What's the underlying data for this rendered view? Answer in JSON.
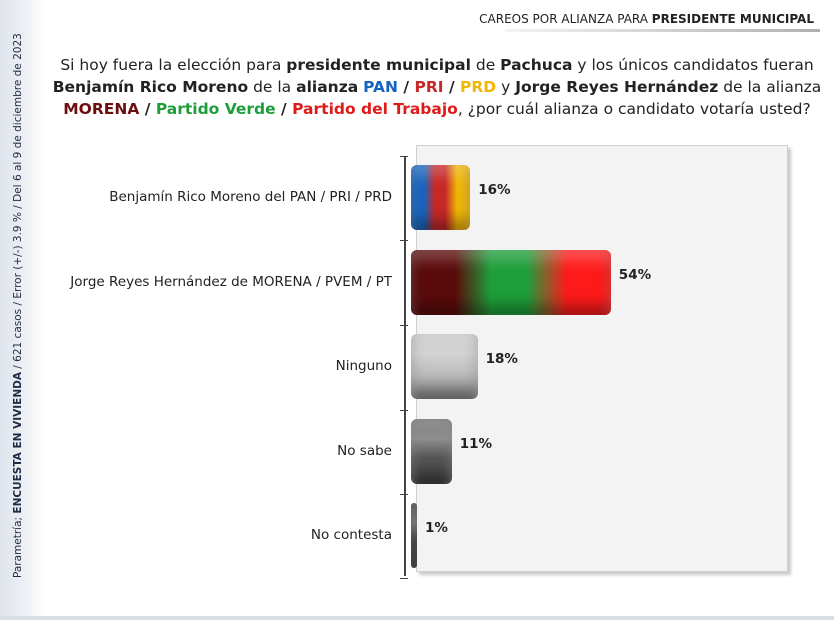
{
  "header": {
    "prefix": "CAREOS POR ALIANZA PARA ",
    "bold": "PRESIDENTE MUNICIPAL"
  },
  "side_note": {
    "prefix": "Parametría; ",
    "bold": "ENCUESTA EN VIVIENDA",
    "suffix": " / 621 casos / Error (+/-) 3.9 % / Del 6 al 9 de diciembre de 2023"
  },
  "question": {
    "p1": "Si hoy fuera la elección para ",
    "b1": "presidente municipal",
    "p2": " de ",
    "b2": "Pachuca",
    "p3": " y los únicos candidatos fueran ",
    "b3": "Benjamín Rico Moreno",
    "p4": " de la ",
    "b4": "alianza",
    "pan": "PAN",
    "sep1": " / ",
    "pri": "PRI",
    "sep2": " / ",
    "prd": "PRD",
    "p5": " y ",
    "b5": "Jorge Reyes Hernández",
    "p6": " de la alianza ",
    "morena": "MORENA",
    "sep3": " / ",
    "verde": "Partido Verde",
    "sep4": " / ",
    "pt": "Partido del Trabajo",
    "p7": ", ¿por cuál alianza o candidato votaría usted?"
  },
  "chart_data": {
    "type": "bar",
    "orientation": "horizontal",
    "categories": [
      "Benjamín Rico Moreno del PAN / PRI / PRD",
      "Jorge Reyes Hernández de MORENA / PVEM / PT",
      "Ninguno",
      "No sabe",
      "No contesta"
    ],
    "values": [
      16,
      54,
      18,
      11,
      1
    ],
    "value_labels": [
      "16%",
      "54%",
      "18%",
      "11%",
      "1%"
    ],
    "xlim": [
      0,
      100
    ],
    "grid": false,
    "legend": "none",
    "colors": [
      [
        "#1565c0",
        "#c62828",
        "#f2b705"
      ],
      [
        "#5a0a0a",
        "#1e9e3a",
        "#ff1a1a"
      ],
      [
        "#bdbdbd"
      ],
      [
        "#555555"
      ],
      [
        "#111111"
      ]
    ]
  }
}
